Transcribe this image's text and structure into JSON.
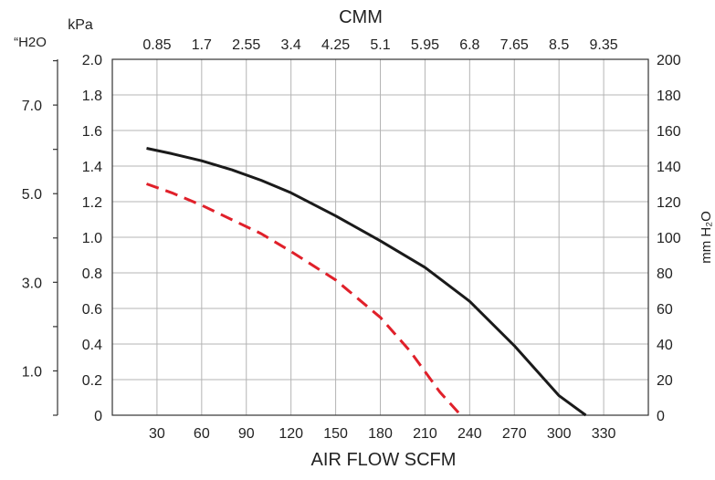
{
  "chart_data": {
    "type": "line",
    "title": "CMM",
    "xlabel": "AIR FLOW  SCFM",
    "ylabel_left_outer": "“H2O",
    "ylabel_left_inner": "kPa",
    "ylabel_right": "mm H₂O",
    "xlim": [
      0,
      360
    ],
    "ylim": [
      0,
      2.0
    ],
    "x_ticks": [
      30,
      60,
      90,
      120,
      150,
      180,
      210,
      240,
      270,
      300,
      330
    ],
    "x_top_ticks": [
      "0.85",
      "1.7",
      "2.55",
      "3.4",
      "4.25",
      "5.1",
      "5.95",
      "6.8",
      "7.65",
      "8.5",
      "9.35"
    ],
    "y_ticks": [
      "0",
      "0.2",
      "0.4",
      "0.6",
      "0.8",
      "1.0",
      "1.2",
      "1.4",
      "1.6",
      "1.8",
      "2.0"
    ],
    "y_right_ticks": [
      "0",
      "20",
      "40",
      "60",
      "80",
      "100",
      "120",
      "140",
      "160",
      "180",
      "200"
    ],
    "y_outer_ticks": [
      {
        "label": "1.0",
        "value": 0.249
      },
      {
        "label": "3.0",
        "value": 0.747
      },
      {
        "label": "5.0",
        "value": 1.245
      },
      {
        "label": "7.0",
        "value": 1.743
      }
    ],
    "grid": true,
    "series": [
      {
        "color": "#1a1a1a",
        "dash": "solid",
        "x": [
          23,
          40,
          60,
          80,
          100,
          120,
          150,
          180,
          210,
          240,
          270,
          300,
          318
        ],
        "y": [
          1.5,
          1.47,
          1.43,
          1.38,
          1.32,
          1.25,
          1.12,
          0.98,
          0.83,
          0.64,
          0.39,
          0.11,
          0.0
        ]
      },
      {
        "color": "#e0202a",
        "dash": "dashed",
        "x": [
          23,
          40,
          60,
          80,
          100,
          120,
          150,
          180,
          200,
          220,
          234
        ],
        "y": [
          1.3,
          1.25,
          1.18,
          1.1,
          1.02,
          0.92,
          0.76,
          0.55,
          0.36,
          0.13,
          0.0
        ]
      }
    ]
  }
}
